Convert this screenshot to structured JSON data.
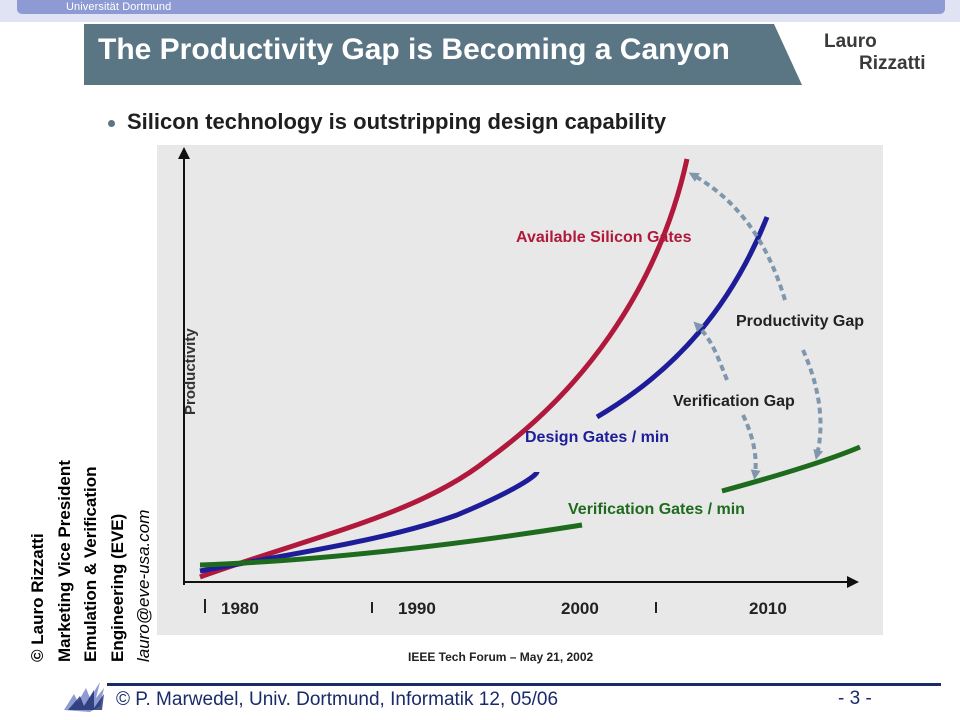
{
  "header": {
    "university": "Universität Dortmund",
    "title": "The Productivity Gap is Becoming a Canyon",
    "author_first": "Lauro",
    "author_last": "Rizzatti"
  },
  "bullet": "Silicon technology is outstripping design capability",
  "colors": {
    "title_banner": "#5a7584",
    "available_silicon": "#b0193c",
    "design_gates": "#1d1d99",
    "verification_gates": "#1e6b1e",
    "gap_arrows": "#7f97ac",
    "chart_background": "#e8e8e8",
    "footer_text": "#1b2b6a"
  },
  "chart": {
    "y_axis_label": "Productivity",
    "x_ticks": [
      "1980",
      "1990",
      "2000",
      "2010"
    ],
    "series": [
      {
        "name": "Available Silicon Gates",
        "color": "#b0193c"
      },
      {
        "name": "Design Gates / min",
        "color": "#1d1d99"
      },
      {
        "name": "Verification Gates / min",
        "color": "#1e6b1e"
      }
    ],
    "annotations": [
      "Productivity Gap",
      "Verification Gap"
    ]
  },
  "caption": "IEEE Tech Forum – May 21, 2002",
  "credit": {
    "line1": "© Lauro Rizzatti",
    "line2": "Marketing Vice President",
    "line3": "Emulation & Verification",
    "line4": "Engineering (EVE)",
    "email": "lauro@eve-usa.com"
  },
  "footer": {
    "text": "© P. Marwedel, Univ. Dortmund, Informatik 12, 05/06",
    "page": "- 3 -"
  }
}
